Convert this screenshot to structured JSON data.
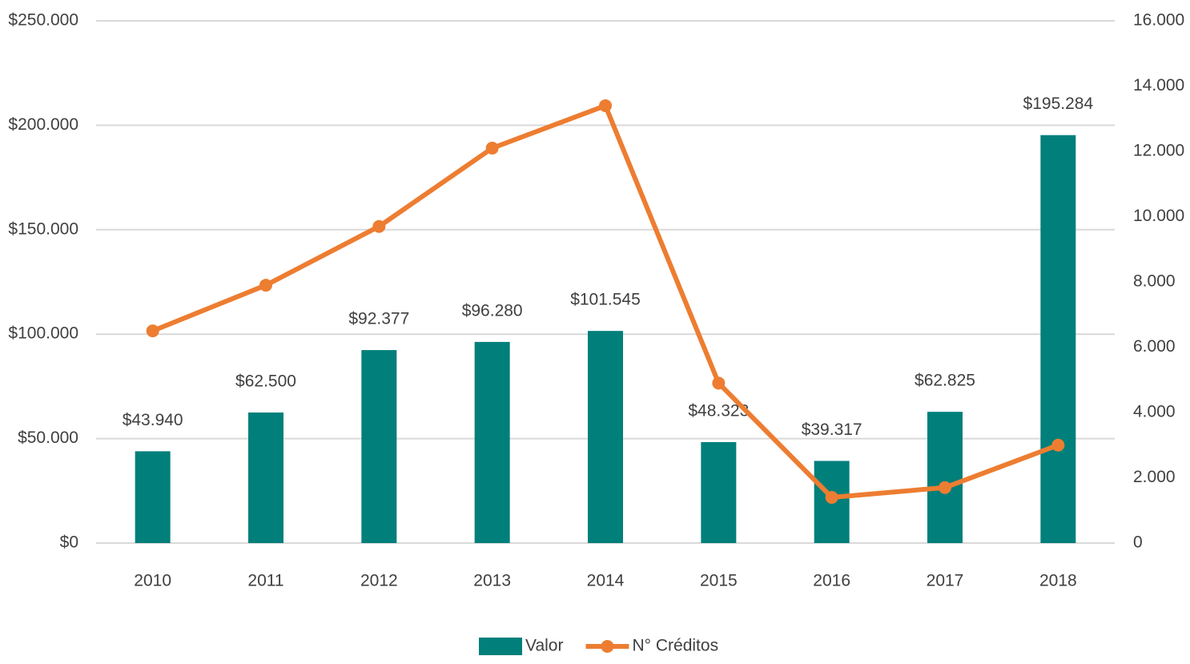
{
  "chart_data": {
    "type": "bar-line",
    "categories": [
      "2010",
      "2011",
      "2012",
      "2013",
      "2014",
      "2015",
      "2016",
      "2017",
      "2018"
    ],
    "series": [
      {
        "name": "Valor",
        "type": "bar",
        "color": "#007f7b",
        "values": [
          43940,
          62500,
          92377,
          96280,
          101545,
          48323,
          39317,
          62825,
          195284
        ],
        "value_labels": [
          "$43.940",
          "$62.500",
          "$92.377",
          "$96.280",
          "$101.545",
          "$48.323",
          "$39.317",
          "$62.825",
          "$195.284"
        ]
      },
      {
        "name": "N° Créditos",
        "type": "line",
        "axis": "y2",
        "color": "#ed7d31",
        "values": [
          6500,
          7900,
          9700,
          12100,
          13400,
          4900,
          1400,
          1700,
          3000
        ]
      }
    ],
    "ylim": [
      0,
      250000
    ],
    "yticks": [
      {
        "value": 0,
        "label": "$0"
      },
      {
        "value": 50000,
        "label": "$50.000"
      },
      {
        "value": 100000,
        "label": "$100.000"
      },
      {
        "value": 150000,
        "label": "$150.000"
      },
      {
        "value": 200000,
        "label": "$200.000"
      },
      {
        "value": 250000,
        "label": "$250.000"
      }
    ],
    "y2lim": [
      0,
      16000
    ],
    "y2ticks": [
      0,
      {
        "value": 2000,
        "label": "2.000"
      },
      {
        "value": 4000,
        "label": "4.000"
      },
      {
        "value": 6000,
        "label": "6.000"
      },
      {
        "value": 8000,
        "label": "8.000"
      },
      {
        "value": 10000,
        "label": "10.000"
      },
      {
        "value": 12000,
        "label": "12.000"
      },
      {
        "value": 14000,
        "label": "14.000"
      },
      {
        "value": 16000,
        "label": "16.000"
      }
    ],
    "grid": true,
    "legend": "bottom"
  }
}
